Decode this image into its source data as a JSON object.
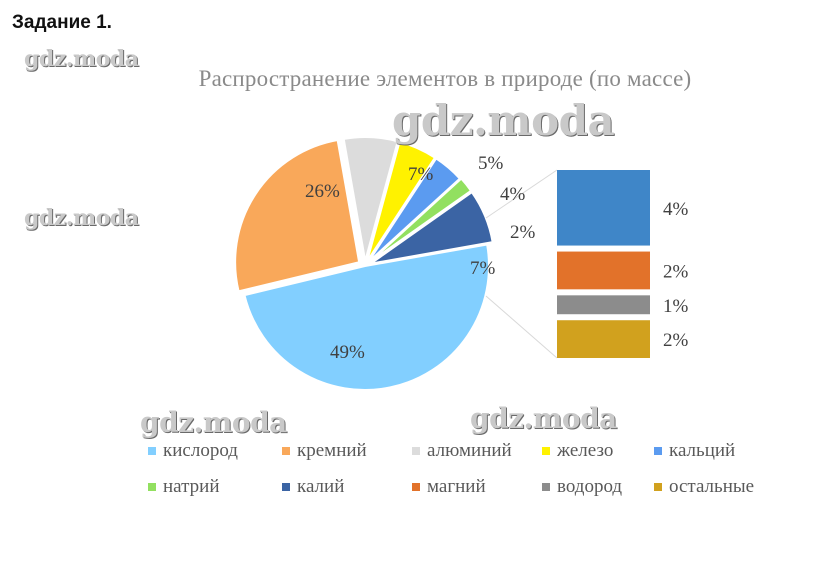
{
  "heading": "Задание 1.",
  "watermark_text": "gdz.moda",
  "colors": {
    "title": "#8a8a8a",
    "label": "#404040",
    "leader": "#d9d9d9"
  },
  "chart_data": {
    "type": "bar-of-pie",
    "title": "Распространение элементов в природе (по массе)",
    "series": [
      {
        "name": "кислород",
        "value": 49,
        "label": "49%",
        "color": "#82CFFF"
      },
      {
        "name": "кремний",
        "value": 26,
        "label": "26%",
        "color": "#F9A85A"
      },
      {
        "name": "алюминий",
        "value": 7,
        "label": "7%",
        "color": "#DCDCDC"
      },
      {
        "name": "железо",
        "value": 5,
        "label": "5%",
        "color": "#FFF200"
      },
      {
        "name": "кальций",
        "value": 4,
        "label": "4%",
        "color": "#5B9BF0"
      },
      {
        "name": "натрий",
        "value": 2,
        "label": "2%",
        "color": "#92E060"
      },
      {
        "name": "калий",
        "value": 7,
        "label": "7%",
        "color": "#3B64A4"
      },
      {
        "name": "магний",
        "value": 2,
        "label": "2%",
        "color": "#E2722A"
      },
      {
        "name": "водород",
        "value": 1,
        "label": "1%",
        "color": "#8C8C8C"
      },
      {
        "name": "остальные",
        "value": 2,
        "label": "2%",
        "color": "#D1A11E"
      }
    ],
    "pie_slices": [
      "кислород",
      "кремний",
      "алюминий",
      "железо",
      "кальций",
      "натрий",
      "калий"
    ],
    "bar_stack": [
      "кальций",
      "магний",
      "водород",
      "остальные"
    ],
    "legend_position": "bottom"
  }
}
